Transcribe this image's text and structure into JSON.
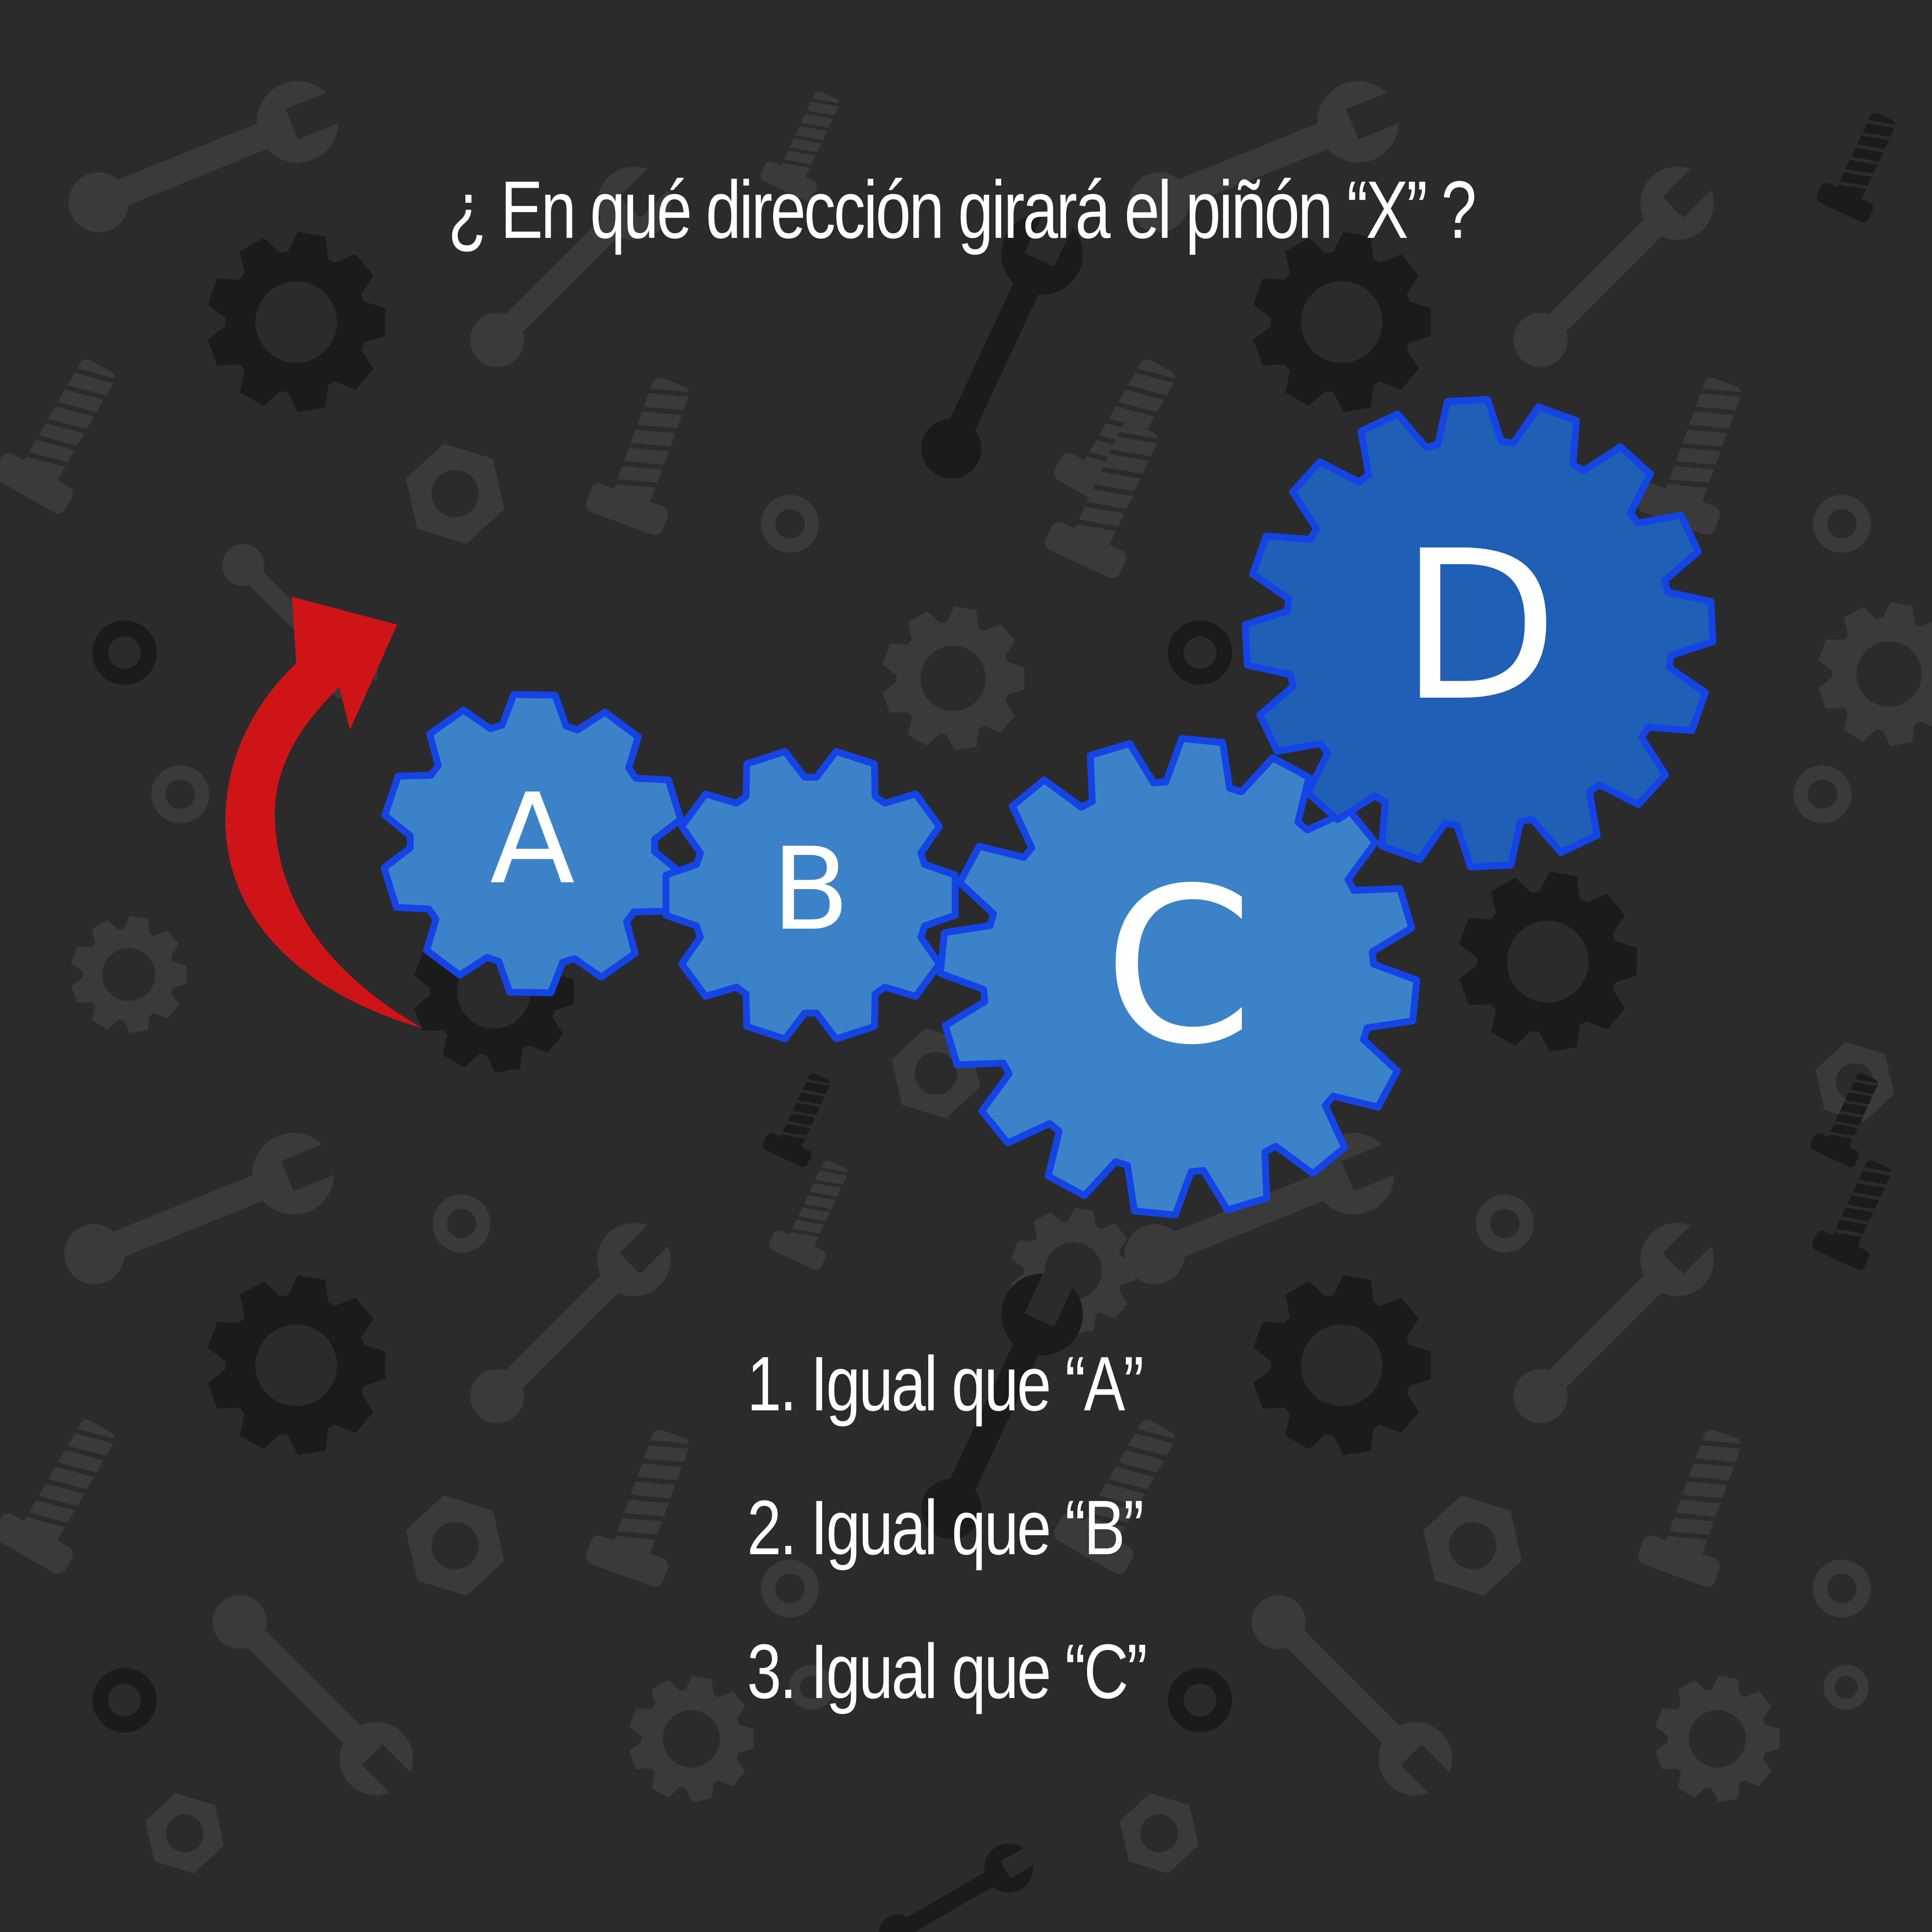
{
  "question": "¿ En qué dirección girará el piñón “X” ?",
  "gears": [
    {
      "id": "A",
      "label": "A",
      "teeth": 10
    },
    {
      "id": "B",
      "label": "B",
      "teeth": 10
    },
    {
      "id": "C",
      "label": "C",
      "teeth": 16
    },
    {
      "id": "D",
      "label": "D",
      "teeth": 16
    }
  ],
  "options": [
    "1. Igual que “A”",
    "2. Igual que “B”",
    "3. Igual que “C”"
  ],
  "colors": {
    "background": "#2b2b2c",
    "pattern_light": "#3a3a3b",
    "pattern_dark": "#1b1b1c",
    "gear_fill": "#3b82c9",
    "gear_fill_dark": "#1f5fb5",
    "gear_outline": "#1444e6",
    "arrow": "#cf1417",
    "text": "#ffffff"
  },
  "icons": [
    "wrench-icon",
    "bolt-icon",
    "nut-icon",
    "cog-icon",
    "washer-icon",
    "curved-arrow-icon"
  ]
}
